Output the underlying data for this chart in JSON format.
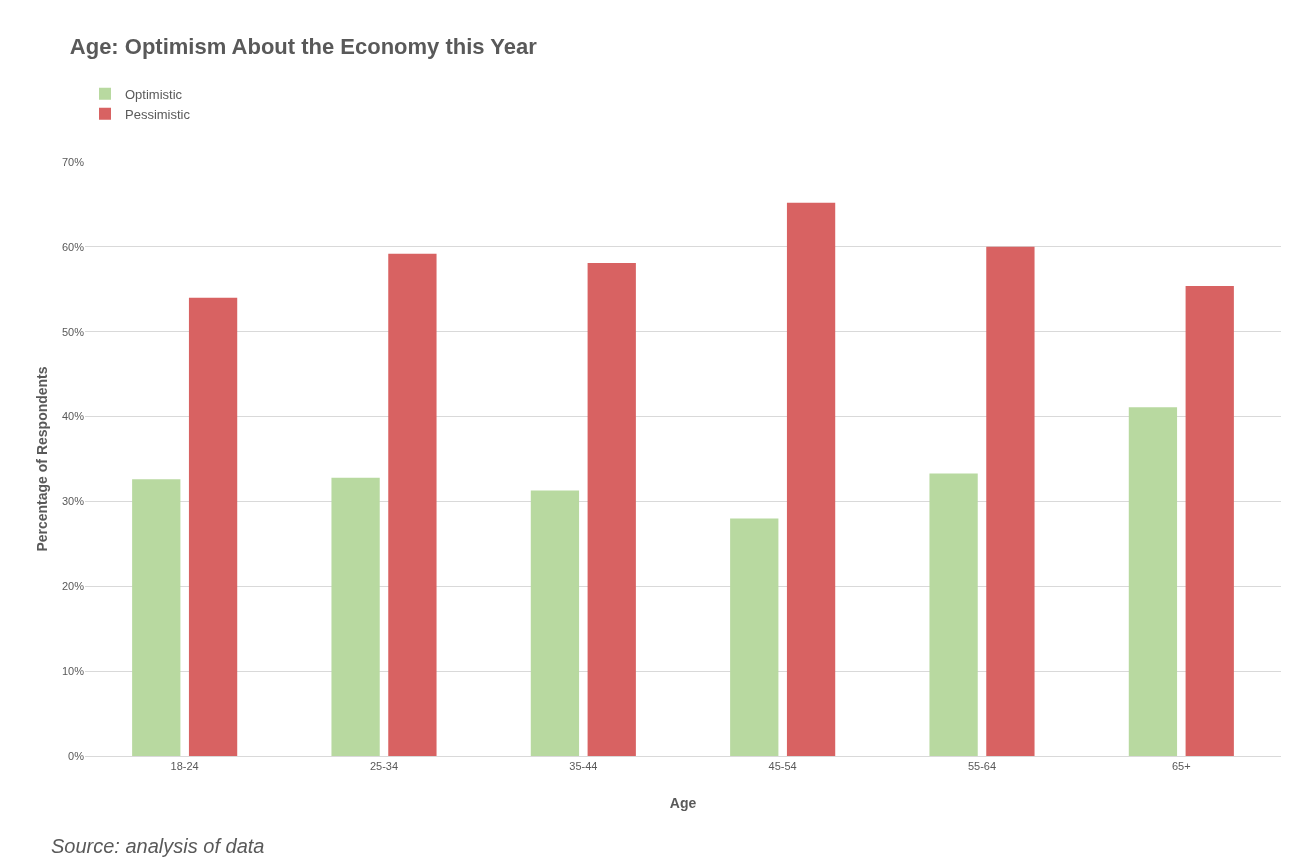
{
  "chart_data": {
    "type": "bar",
    "title": "Age: Optimism About the Economy this Year",
    "xlabel": "Age",
    "ylabel": "Percentage of Respondents",
    "categories": [
      "18-24",
      "25-34",
      "35-44",
      "45-54",
      "55-64",
      "65+"
    ],
    "series": [
      {
        "name": "Optimistic",
        "color": "#b8d9a0",
        "values": [
          32.6,
          32.8,
          31.3,
          28.0,
          33.3,
          41.1
        ]
      },
      {
        "name": "Pessimistic",
        "color": "#d86262",
        "values": [
          54.0,
          59.2,
          58.1,
          65.2,
          60.0,
          55.4
        ]
      }
    ],
    "ylim": [
      0,
      70
    ],
    "yticks": [
      {
        "value": 0,
        "label": "0%"
      },
      {
        "value": 10,
        "label": "10%"
      },
      {
        "value": 20,
        "label": "20%"
      },
      {
        "value": 30,
        "label": "30%"
      },
      {
        "value": 40,
        "label": "40%"
      },
      {
        "value": 50,
        "label": "50%"
      },
      {
        "value": 60,
        "label": "60%"
      },
      {
        "value": 70,
        "label": "70%"
      }
    ],
    "grid": "y",
    "legend": "top left",
    "annotations": [
      "Source: analysis of data"
    ]
  }
}
